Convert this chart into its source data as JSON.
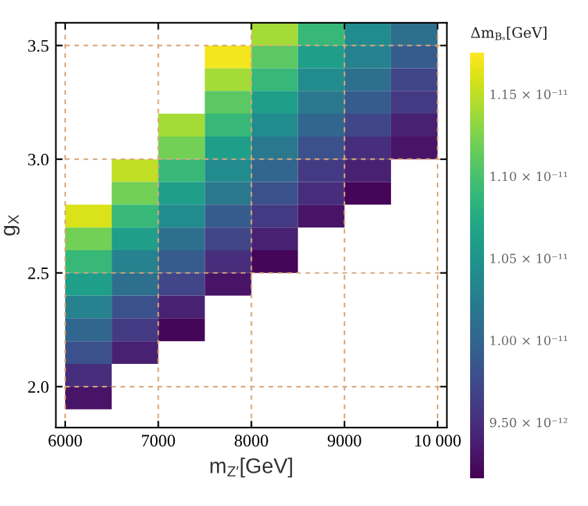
{
  "chart_data": {
    "type": "heatmap",
    "xlabel": "m$_{Z′}$[GeV]",
    "ylabel": "g$_{X}$",
    "clabel": "Δm$_{Bₛ}$[GeV]",
    "x": [
      6250,
      6750,
      7250,
      7750,
      8250,
      8750,
      9250,
      9750
    ],
    "y": [
      3.55,
      3.45,
      3.35,
      3.25,
      3.15,
      3.05,
      2.95,
      2.85,
      2.75,
      2.65,
      2.55,
      2.45,
      2.35,
      2.25,
      2.15,
      2.05,
      1.95
    ],
    "cells": [
      [
        null,
        null,
        null,
        null,
        1.14e-11,
        1.09e-11,
        1.04e-11,
        1.01e-11
      ],
      [
        null,
        null,
        null,
        1.17e-11,
        1.11e-11,
        1.06e-11,
        1.03e-11,
        9.9e-12
      ],
      [
        null,
        null,
        null,
        1.14e-11,
        1.09e-11,
        1.04e-11,
        1.01e-11,
        9.7e-12
      ],
      [
        null,
        null,
        null,
        1.11e-11,
        1.06e-11,
        1.02e-11,
        9.9e-12,
        9.6e-12
      ],
      [
        null,
        null,
        1.14e-11,
        1.09e-11,
        1.04e-11,
        1e-11,
        9.7e-12,
        9.4e-12
      ],
      [
        null,
        null,
        1.12e-11,
        1.06e-11,
        1.02e-11,
        9.8e-12,
        9.5e-12,
        9.3e-12
      ],
      [
        null,
        1.15e-11,
        1.09e-11,
        1.04e-11,
        1e-11,
        9.6e-12,
        9.4e-12,
        null
      ],
      [
        null,
        1.12e-11,
        1.06e-11,
        1.02e-11,
        9.8e-12,
        9.5e-12,
        9.2e-12,
        null
      ],
      [
        1.16e-11,
        1.09e-11,
        1.04e-11,
        9.9e-12,
        9.6e-12,
        9.3e-12,
        null,
        null
      ],
      [
        1.12e-11,
        1.06e-11,
        1.01e-11,
        9.7e-12,
        9.4e-12,
        null,
        null,
        null
      ],
      [
        1.09e-11,
        1.03e-11,
        9.9e-12,
        9.5e-12,
        9.2e-12,
        null,
        null,
        null
      ],
      [
        1.06e-11,
        1.01e-11,
        9.7e-12,
        9.3e-12,
        null,
        null,
        null,
        null
      ],
      [
        1.03e-11,
        9.8e-12,
        9.4e-12,
        null,
        null,
        null,
        null,
        null
      ],
      [
        1e-11,
        9.6e-12,
        9.2e-12,
        null,
        null,
        null,
        null,
        null
      ],
      [
        9.8e-12,
        9.4e-12,
        null,
        null,
        null,
        null,
        null,
        null
      ],
      [
        9.5e-12,
        null,
        null,
        null,
        null,
        null,
        null,
        null
      ],
      [
        9.3e-12,
        null,
        null,
        null,
        null,
        null,
        null,
        null
      ]
    ],
    "xlim": [
      5900,
      10100
    ],
    "ylim": [
      1.82,
      3.6
    ],
    "xticks": [
      6000,
      7000,
      8000,
      9000,
      {
        "value": 10000,
        "label": "10 000"
      }
    ],
    "yticks": [
      {
        "value": 2.0,
        "label": "2.0"
      },
      2.5,
      {
        "value": 3.0,
        "label": "3.0"
      },
      3.5
    ],
    "clim": [
      9.16e-12,
      1.175e-11
    ],
    "cticks": [
      {
        "value": 9.5e-12,
        "label": "9.50 × 10⁻¹²"
      },
      {
        "value": 1e-11,
        "label": "1.00 × 10⁻¹¹"
      },
      {
        "value": 1.05e-11,
        "label": "1.05 × 10⁻¹¹"
      },
      {
        "value": 1.1e-11,
        "label": "1.10 × 10⁻¹¹"
      },
      {
        "value": 1.15e-11,
        "label": "1.15 × 10⁻¹¹"
      }
    ],
    "grid": true
  }
}
